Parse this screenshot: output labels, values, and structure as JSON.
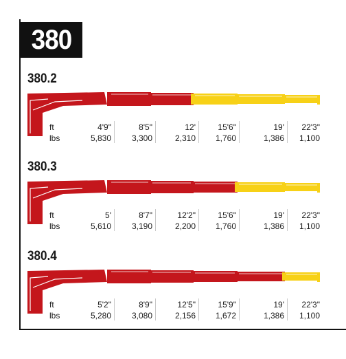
{
  "title": "380",
  "colors": {
    "red": "#c4161c",
    "yellow": "#f7d117",
    "edge": "#ffffff",
    "tick": "#c8c8c8"
  },
  "unit_labels": [
    "ft",
    "lbs"
  ],
  "models": [
    {
      "name": "380.2",
      "red_sections": 3,
      "points": [
        {
          "ft": "4'9\"",
          "lbs": "5,830"
        },
        {
          "ft": "8'5\"",
          "lbs": "3,300"
        },
        {
          "ft": "12'",
          "lbs": "2,310"
        },
        {
          "ft": "15'6\"",
          "lbs": "1,760"
        },
        {
          "ft": "19'",
          "lbs": "1,386"
        },
        {
          "ft": "22'3\"",
          "lbs": "1,100"
        }
      ]
    },
    {
      "name": "380.3",
      "red_sections": 4,
      "points": [
        {
          "ft": "5'",
          "lbs": "5,610"
        },
        {
          "ft": "8'7\"",
          "lbs": "3,190"
        },
        {
          "ft": "12'2\"",
          "lbs": "2,200"
        },
        {
          "ft": "15'6\"",
          "lbs": "1,760"
        },
        {
          "ft": "19'",
          "lbs": "1,386"
        },
        {
          "ft": "22'3\"",
          "lbs": "1,100"
        }
      ]
    },
    {
      "name": "380.4",
      "red_sections": 5,
      "points": [
        {
          "ft": "5'2\"",
          "lbs": "5,280"
        },
        {
          "ft": "8'9\"",
          "lbs": "3,080"
        },
        {
          "ft": "12'5\"",
          "lbs": "2,156"
        },
        {
          "ft": "15'9\"",
          "lbs": "1,672"
        },
        {
          "ft": "19'",
          "lbs": "1,386"
        },
        {
          "ft": "22'3\"",
          "lbs": "1,100"
        }
      ]
    }
  ]
}
